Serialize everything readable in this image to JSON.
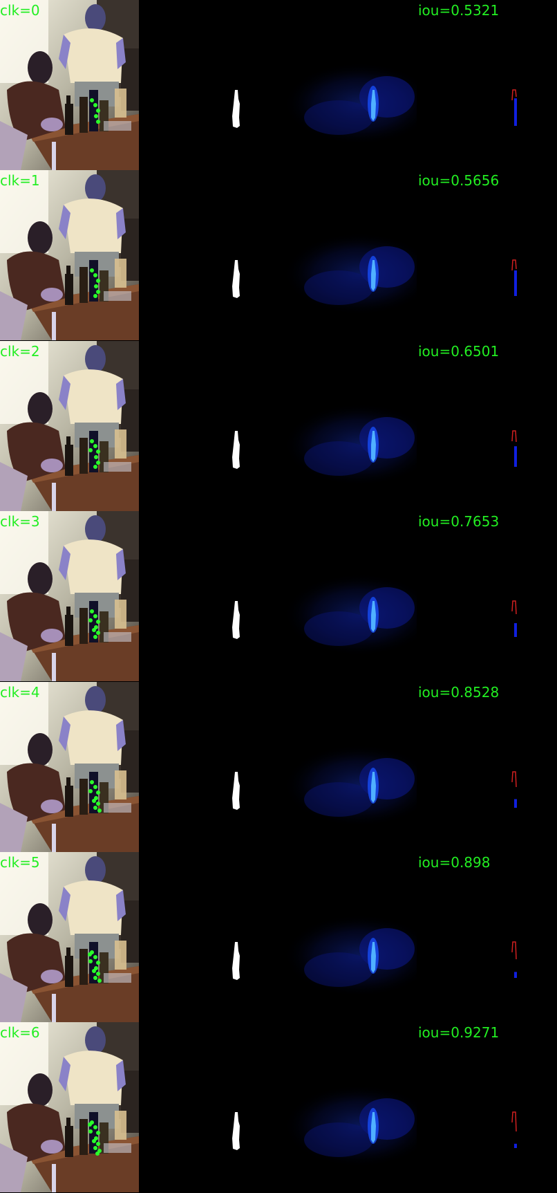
{
  "rows": [
    {
      "clk_label": "clk=0",
      "iou_label": "iou=0.5321",
      "iou": 0.5321,
      "clicks": 5
    },
    {
      "clk_label": "clk=1",
      "iou_label": "iou=0.5656",
      "iou": 0.5656,
      "clicks": 6
    },
    {
      "clk_label": "clk=2",
      "iou_label": "iou=0.6501",
      "iou": 0.6501,
      "clicks": 7
    },
    {
      "clk_label": "clk=3",
      "iou_label": "iou=0.7653",
      "iou": 0.7653,
      "clicks": 8
    },
    {
      "clk_label": "clk=4",
      "iou_label": "iou=0.8528",
      "iou": 0.8528,
      "clicks": 9
    },
    {
      "clk_label": "clk=5",
      "iou_label": "iou=0.898",
      "iou": 0.898,
      "clicks": 10
    },
    {
      "clk_label": "clk=6",
      "iou_label": "iou=0.9271",
      "iou": 0.9271,
      "clicks": 11
    }
  ],
  "colors": {
    "label_green": "#22ee22",
    "click_green": "#2aff2a",
    "mask_white": "#ffffff",
    "heat_blue": "#1030c0",
    "heat_bright": "#40a0ff",
    "error_red": "#d02020",
    "error_blue": "#1020e0"
  }
}
